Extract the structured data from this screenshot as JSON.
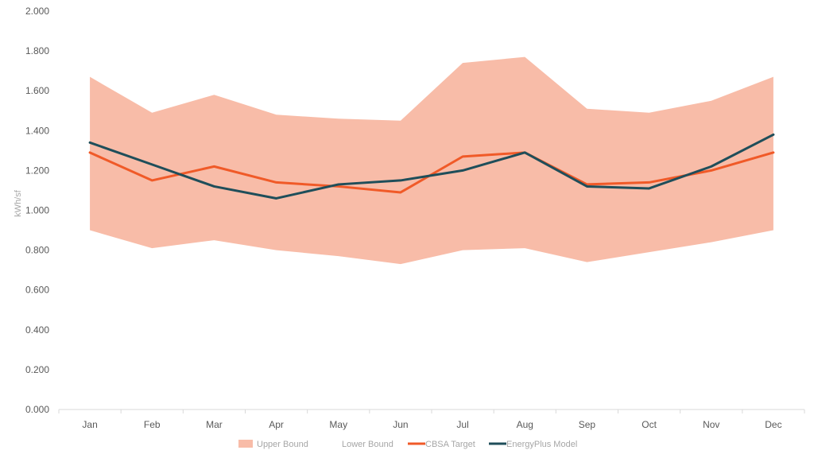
{
  "chart_data": {
    "type": "area",
    "categories": [
      "Jan",
      "Feb",
      "Mar",
      "Apr",
      "May",
      "Jun",
      "Jul",
      "Aug",
      "Sep",
      "Oct",
      "Nov",
      "Dec"
    ],
    "ylabel": "kWh/sf",
    "ylim": [
      0,
      2.0
    ],
    "yticks": [
      "0.000",
      "0.200",
      "0.400",
      "0.600",
      "0.800",
      "1.000",
      "1.200",
      "1.400",
      "1.600",
      "1.800",
      "2.000"
    ],
    "grid": false,
    "legend_position": "bottom",
    "series": [
      {
        "name": "Upper Bound",
        "kind": "band-top",
        "color": "#f8bca8",
        "values": [
          1.67,
          1.49,
          1.58,
          1.48,
          1.46,
          1.45,
          1.74,
          1.77,
          1.51,
          1.49,
          1.55,
          1.67
        ]
      },
      {
        "name": "Lower Bound",
        "kind": "band-bottom",
        "color": "#ffffff",
        "values": [
          0.9,
          0.81,
          0.85,
          0.8,
          0.77,
          0.73,
          0.8,
          0.81,
          0.74,
          0.79,
          0.84,
          0.9
        ]
      },
      {
        "name": "CBSA Target",
        "kind": "line",
        "color": "#f05a28",
        "values": [
          1.29,
          1.15,
          1.22,
          1.14,
          1.12,
          1.09,
          1.27,
          1.29,
          1.13,
          1.14,
          1.2,
          1.29
        ]
      },
      {
        "name": "EnergyPlus Model",
        "kind": "line",
        "color": "#1f4e5a",
        "values": [
          1.34,
          1.23,
          1.12,
          1.06,
          1.13,
          1.15,
          1.2,
          1.29,
          1.12,
          1.11,
          1.22,
          1.38
        ]
      }
    ]
  }
}
